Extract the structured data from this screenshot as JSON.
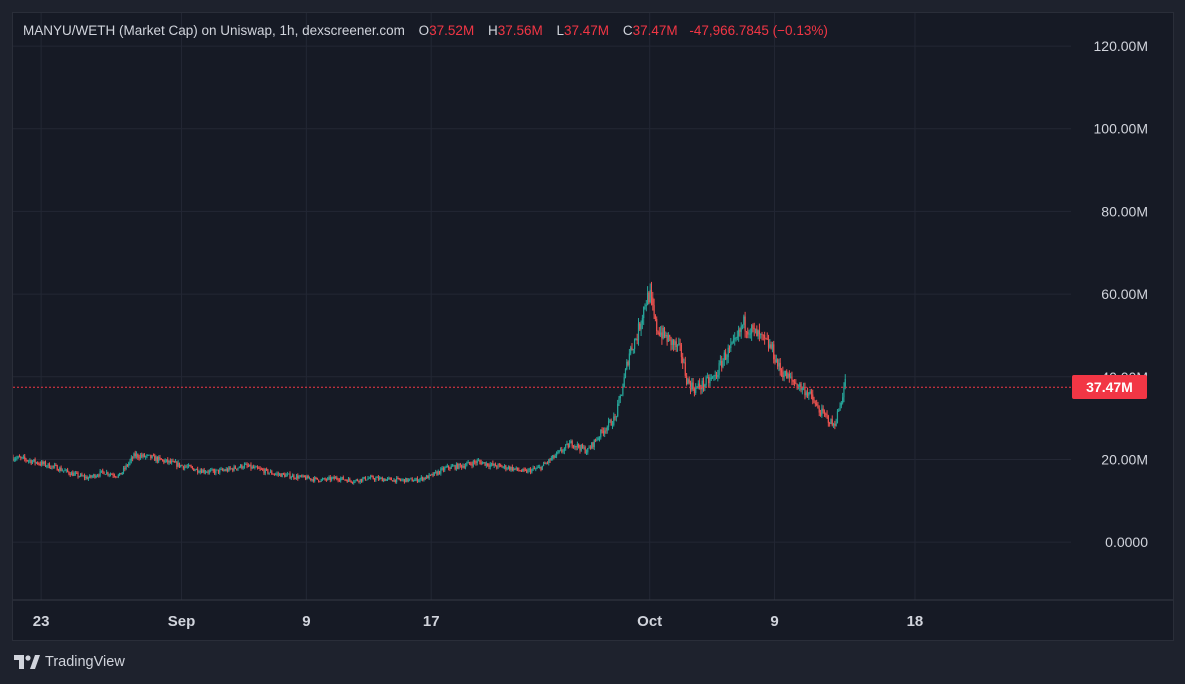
{
  "legend": {
    "title": "MANYU/WETH (Market Cap) on Uniswap, 1h, dexscreener.com",
    "o_label": "O",
    "o_value": "37.52M",
    "h_label": "H",
    "h_value": "37.56M",
    "l_label": "L",
    "l_value": "37.47M",
    "c_label": "C",
    "c_value": "37.47M",
    "change": "-47,966.7845 (−0.13%)"
  },
  "price_tag": "37.47M",
  "brand": {
    "name": "TradingView",
    "icon": "tradingview-logo-icon"
  },
  "colors": {
    "up": "#26a69a",
    "down": "#ef5350",
    "price_line": "#f23645",
    "background": "#161a25"
  },
  "chart_data": {
    "type": "candlestick",
    "title": "MANYU/WETH (Market Cap) on Uniswap, 1h, dexscreener.com",
    "y_ticks": [
      "120.00M",
      "100.00M",
      "80.00M",
      "60.00M",
      "40.00M",
      "20.00M",
      "0.0000"
    ],
    "y_tick_values": [
      120,
      100,
      80,
      60,
      40,
      20,
      0
    ],
    "x_ticks": [
      "23",
      "Sep",
      "9",
      "17",
      "Oct",
      "9",
      "18"
    ],
    "x_tick_days": [
      23,
      32,
      40,
      48,
      62,
      70,
      79
    ],
    "ylim": [
      -14,
      128
    ],
    "xlim": [
      21.2,
      89
    ],
    "y_unit": "M",
    "grid": true,
    "current_price": 37.47,
    "series": [
      {
        "points": [
          [
            21.2,
            20.5
          ],
          [
            22,
            20.0
          ],
          [
            23,
            19.0
          ],
          [
            24,
            18.0
          ],
          [
            25,
            16.5
          ],
          [
            26,
            15.5
          ],
          [
            27,
            17.0
          ],
          [
            28,
            16.0
          ],
          [
            29,
            21.0
          ],
          [
            30,
            20.5
          ],
          [
            31,
            19.5
          ],
          [
            32,
            18.5
          ],
          [
            33,
            17.5
          ],
          [
            34,
            17.0
          ],
          [
            35,
            17.5
          ],
          [
            36,
            18.5
          ],
          [
            37,
            17.5
          ],
          [
            38,
            16.5
          ],
          [
            39,
            16.0
          ],
          [
            40,
            15.5
          ],
          [
            41,
            15.0
          ],
          [
            42,
            15.5
          ],
          [
            43,
            14.8
          ],
          [
            44,
            15.5
          ],
          [
            45,
            15.2
          ],
          [
            46,
            15.0
          ],
          [
            47,
            15.0
          ],
          [
            48,
            16.0
          ],
          [
            49,
            18.0
          ],
          [
            50,
            18.5
          ],
          [
            51,
            19.5
          ],
          [
            52,
            18.5
          ],
          [
            53,
            18.0
          ],
          [
            54,
            17.0
          ],
          [
            55,
            18.0
          ],
          [
            56,
            21.0
          ],
          [
            57,
            24.0
          ],
          [
            58,
            22.0
          ],
          [
            59,
            27.0
          ],
          [
            59.8,
            30.0
          ],
          [
            60.3,
            38.0
          ],
          [
            60.7,
            46.0
          ],
          [
            61.2,
            50.0
          ],
          [
            61.7,
            58.0
          ],
          [
            62,
            60.0
          ],
          [
            62.4,
            52.0
          ],
          [
            62.9,
            50.0
          ],
          [
            63.5,
            48.0
          ],
          [
            64,
            46.0
          ],
          [
            64.4,
            39.0
          ],
          [
            64.9,
            37.0
          ],
          [
            65.6,
            38.5
          ],
          [
            66.2,
            40.0
          ],
          [
            66.8,
            45.0
          ],
          [
            67.5,
            48.0
          ],
          [
            68,
            53.0
          ],
          [
            68.6,
            51.0
          ],
          [
            69.2,
            49.0
          ],
          [
            69.8,
            47.0
          ],
          [
            70.3,
            42.0
          ],
          [
            70.8,
            40.0
          ],
          [
            71.5,
            38.0
          ],
          [
            72.2,
            36.0
          ],
          [
            72.8,
            32.0
          ],
          [
            73.4,
            30.0
          ],
          [
            73.8,
            28.0
          ],
          [
            74.2,
            33.0
          ],
          [
            74.6,
            40.0
          ]
        ]
      }
    ]
  }
}
